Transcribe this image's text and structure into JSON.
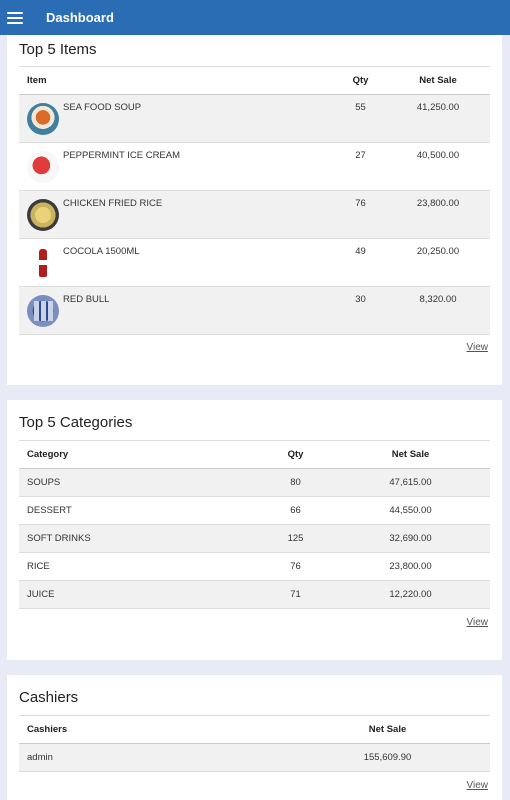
{
  "app_bar": {
    "title": "Dashboard",
    "menu_icon": "hamburger-icon",
    "color": "#2a6db5"
  },
  "top_items": {
    "title": "Top 5 Items",
    "columns": {
      "item": "Item",
      "qty": "Qty",
      "net_sale": "Net Sale"
    },
    "rows": [
      {
        "name": "SEA FOOD SOUP",
        "qty": "55",
        "net_sale": "41,250.00",
        "image": "seafood-soup-image"
      },
      {
        "name": "PEPPERMINT ICE CREAM",
        "qty": "27",
        "net_sale": "40,500.00",
        "image": "ice-cream-image"
      },
      {
        "name": "CHICKEN FRIED RICE",
        "qty": "76",
        "net_sale": "23,800.00",
        "image": "fried-rice-image"
      },
      {
        "name": "COCOLA 1500ML",
        "qty": "49",
        "net_sale": "20,250.00",
        "image": "cola-bottle-image"
      },
      {
        "name": "RED BULL",
        "qty": "30",
        "net_sale": "8,320.00",
        "image": "red-bull-image"
      }
    ],
    "view_label": "View"
  },
  "top_categories": {
    "title": "Top 5 Categories",
    "columns": {
      "category": "Category",
      "qty": "Qty",
      "net_sale": "Net Sale"
    },
    "rows": [
      {
        "name": "SOUPS",
        "qty": "80",
        "net_sale": "47,615.00"
      },
      {
        "name": "DESSERT",
        "qty": "66",
        "net_sale": "44,550.00"
      },
      {
        "name": "SOFT DRINKS",
        "qty": "125",
        "net_sale": "32,690.00"
      },
      {
        "name": "RICE",
        "qty": "76",
        "net_sale": "23,800.00"
      },
      {
        "name": "JUICE",
        "qty": "71",
        "net_sale": "12,220.00"
      }
    ],
    "view_label": "View"
  },
  "cashiers": {
    "title": "Cashiers",
    "columns": {
      "cashier": "Cashiers",
      "net_sale": "Net Sale"
    },
    "rows": [
      {
        "name": "admin",
        "net_sale": "155,609.90"
      }
    ],
    "view_label": "View"
  }
}
